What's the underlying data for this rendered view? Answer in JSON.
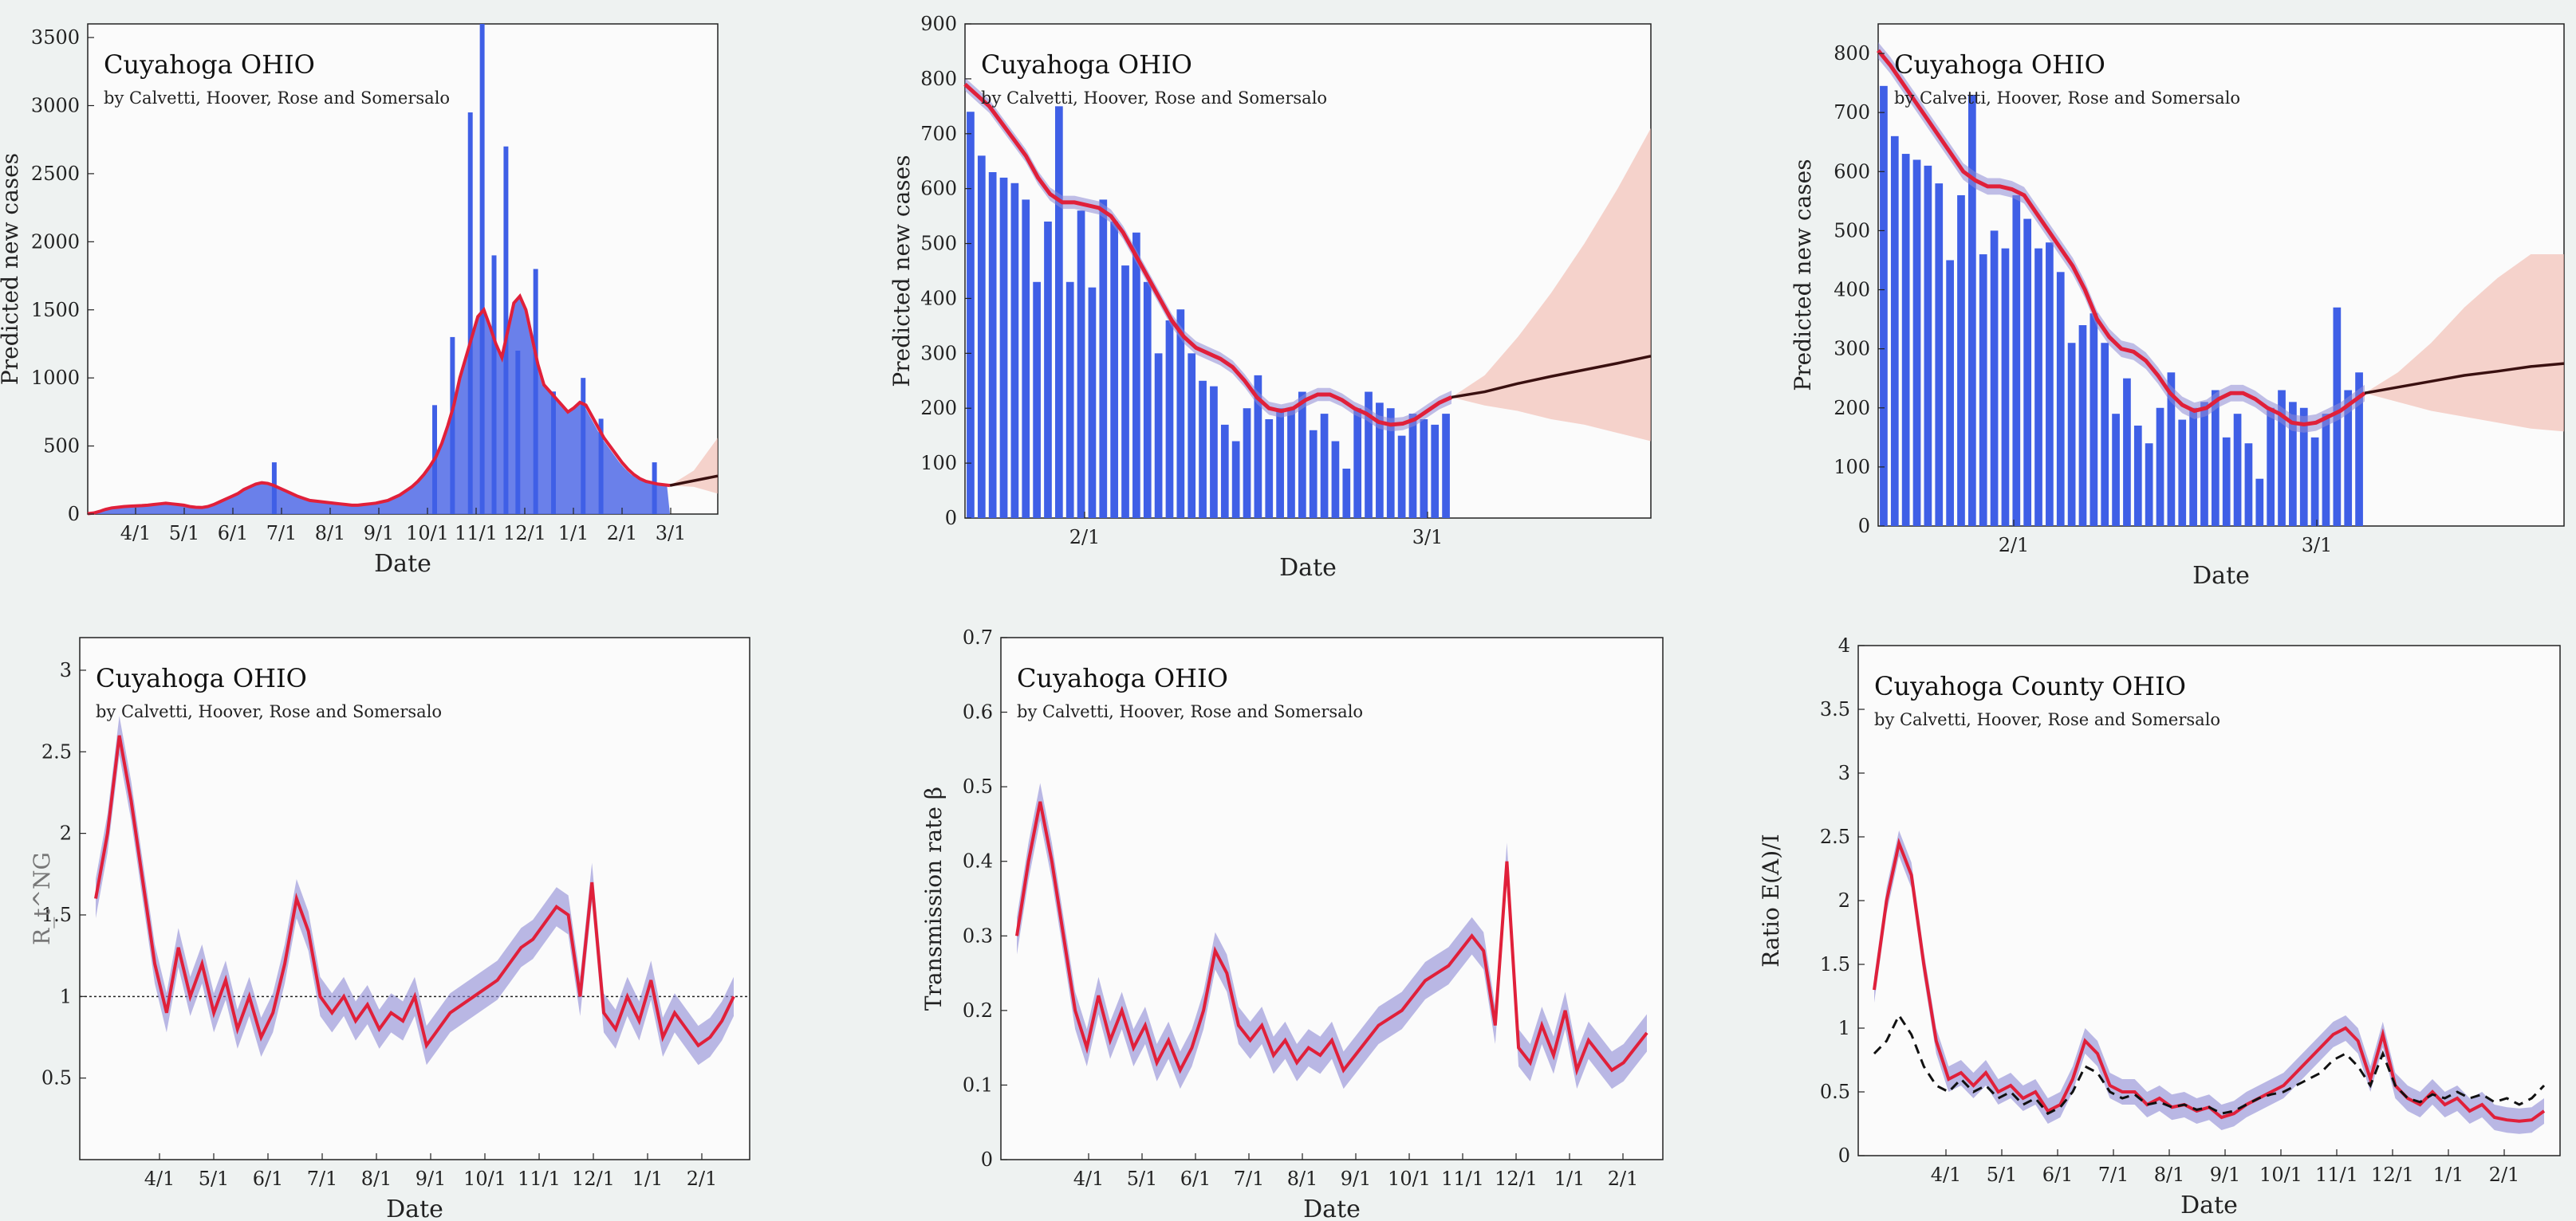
{
  "colors": {
    "bar": "#3f5fe6",
    "area": "#5a72e8",
    "red_curve": "#e0203a",
    "band": "#8e8ad6",
    "forecast": "#3a1010",
    "forecast_band": "#f2b7ac",
    "black_dash": "#111111",
    "panel_bg": "#fbfbfb"
  },
  "chart_data": [
    {
      "type": "bar",
      "title": "Cuyahoga OHIO",
      "subtitle": "by Calvetti, Hoover, Rose and Somersalo",
      "xlabel": "Date",
      "ylabel": "Predicted new cases",
      "xticks": [
        "4/1",
        "5/1",
        "6/1",
        "7/1",
        "8/1",
        "9/1",
        "10/1",
        "11/1",
        "12/1",
        "1/1",
        "2/1",
        "3/1"
      ],
      "yticks": [
        "0",
        "500",
        "1000",
        "1500",
        "2000",
        "2500",
        "3000",
        "3500"
      ],
      "ylim": [
        0,
        3600
      ],
      "grid": false,
      "series": [
        {
          "values": [
            3,
            8,
            20,
            35,
            45,
            50,
            55,
            58,
            60,
            62,
            65,
            70,
            75,
            80,
            75,
            70,
            65,
            55,
            50,
            48,
            55,
            70,
            90,
            110,
            130,
            150,
            180,
            200,
            220,
            230,
            225,
            210,
            190,
            170,
            150,
            130,
            115,
            100,
            95,
            90,
            85,
            80,
            75,
            70,
            65,
            65,
            70,
            75,
            80,
            90,
            100,
            120,
            140,
            170,
            200,
            240,
            290,
            350,
            420,
            520,
            650,
            800,
            1000,
            1150,
            1300,
            1450,
            1500,
            1380,
            1250,
            1150,
            1350,
            1550,
            1600,
            1500,
            1300,
            1100,
            950,
            900,
            850,
            800,
            750,
            780,
            820,
            800,
            720,
            640,
            560,
            500,
            440,
            380,
            330,
            290,
            260,
            240,
            230,
            220,
            215,
            210
          ]
        },
        {
          "values": [
            3,
            8,
            20,
            35,
            45,
            50,
            55,
            58,
            60,
            62,
            65,
            70,
            75,
            80,
            75,
            70,
            65,
            55,
            50,
            48,
            55,
            70,
            90,
            110,
            130,
            150,
            180,
            200,
            220,
            230,
            225,
            210,
            190,
            170,
            150,
            130,
            115,
            100,
            95,
            90,
            85,
            80,
            75,
            70,
            65,
            65,
            70,
            75,
            80,
            90,
            100,
            120,
            140,
            170,
            200,
            240,
            290,
            350,
            420,
            520,
            650,
            800,
            1000,
            1150,
            1300,
            1450,
            1500,
            1380,
            1250,
            1150,
            1350,
            1550,
            1600,
            1500,
            1300,
            1100,
            950,
            900,
            850,
            800,
            750,
            780,
            820,
            800,
            720,
            640,
            560,
            500,
            440,
            380,
            330,
            290,
            260,
            240,
            230,
            220,
            215,
            210
          ]
        }
      ],
      "spikes": [
        {
          "i": 31,
          "v": 380
        },
        {
          "i": 58,
          "v": 800
        },
        {
          "i": 61,
          "v": 1300
        },
        {
          "i": 64,
          "v": 2950
        },
        {
          "i": 66,
          "v": 3600
        },
        {
          "i": 68,
          "v": 1900
        },
        {
          "i": 70,
          "v": 2700
        },
        {
          "i": 72,
          "v": 1200
        },
        {
          "i": 75,
          "v": 1800
        },
        {
          "i": 78,
          "v": 900
        },
        {
          "i": 83,
          "v": 1000
        },
        {
          "i": 86,
          "v": 700
        },
        {
          "i": 95,
          "v": 380
        }
      ],
      "forecast": {
        "values": [
          210,
          245,
          280
        ],
        "upper": [
          210,
          320,
          560
        ],
        "lower": [
          210,
          200,
          150
        ]
      }
    },
    {
      "type": "bar",
      "title": "Cuyahoga OHIO",
      "subtitle": "by Calvetti, Hoover, Rose and Somersalo",
      "xlabel": "Date",
      "ylabel": "Predicted new cases",
      "xticks": [
        "2/1",
        "3/1"
      ],
      "yticks": [
        "0",
        "100",
        "200",
        "300",
        "400",
        "500",
        "600",
        "700",
        "800",
        "900"
      ],
      "ylim": [
        0,
        900
      ],
      "grid": false,
      "series": [
        {
          "values": [
            740,
            660,
            630,
            620,
            610,
            580,
            430,
            540,
            750,
            430,
            560,
            420,
            580,
            540,
            460,
            520,
            430,
            300,
            360,
            380,
            300,
            250,
            240,
            170,
            140,
            200,
            260,
            180,
            200,
            200,
            230,
            160,
            190,
            140,
            90,
            200,
            230,
            210,
            200,
            150,
            190,
            180,
            170,
            190
          ]
        },
        {
          "values": [
            790,
            770,
            750,
            720,
            690,
            660,
            620,
            590,
            575,
            575,
            570,
            565,
            550,
            520,
            480,
            440,
            400,
            360,
            330,
            310,
            300,
            290,
            275,
            250,
            220,
            200,
            195,
            200,
            215,
            225,
            225,
            215,
            200,
            190,
            175,
            170,
            172,
            180,
            195,
            210,
            220
          ]
        }
      ],
      "band_width": 12,
      "forecast": {
        "values": [
          220,
          230,
          245,
          258,
          270,
          282,
          295
        ],
        "upper": [
          220,
          260,
          330,
          410,
          500,
          600,
          710
        ],
        "lower": [
          220,
          205,
          195,
          180,
          170,
          155,
          140
        ]
      }
    },
    {
      "type": "bar",
      "title": "Cuyahoga OHIO",
      "subtitle": "by Calvetti, Hoover, Rose and Somersalo",
      "xlabel": "Date",
      "ylabel": "Predicted new cases",
      "xticks": [
        "2/1",
        "3/1"
      ],
      "yticks": [
        "0",
        "100",
        "200",
        "300",
        "400",
        "500",
        "600",
        "700",
        "800"
      ],
      "ylim": [
        0,
        850
      ],
      "grid": false,
      "series": [
        {
          "values": [
            745,
            660,
            630,
            620,
            610,
            580,
            450,
            560,
            730,
            460,
            500,
            470,
            560,
            520,
            470,
            480,
            430,
            310,
            340,
            360,
            310,
            190,
            250,
            170,
            140,
            200,
            260,
            180,
            200,
            210,
            230,
            150,
            190,
            140,
            80,
            200,
            230,
            210,
            200,
            150,
            190,
            370,
            230,
            260
          ]
        },
        {
          "values": [
            805,
            780,
            750,
            720,
            690,
            660,
            630,
            600,
            585,
            575,
            575,
            570,
            560,
            530,
            500,
            470,
            440,
            400,
            350,
            320,
            300,
            295,
            280,
            255,
            225,
            205,
            195,
            200,
            215,
            225,
            225,
            215,
            200,
            190,
            175,
            172,
            175,
            185,
            195,
            210,
            225
          ]
        }
      ],
      "band_width": 14,
      "forecast": {
        "values": [
          225,
          235,
          245,
          255,
          262,
          270,
          275
        ],
        "upper": [
          225,
          260,
          310,
          370,
          420,
          460,
          460
        ],
        "lower": [
          225,
          210,
          195,
          185,
          175,
          165,
          160
        ]
      }
    },
    {
      "type": "line",
      "title": "Cuyahoga OHIO",
      "subtitle": "by Calvetti, Hoover, Rose and Somersalo",
      "xlabel": "Date",
      "ylabel": "R_t^NG",
      "xticks": [
        "4/1",
        "5/1",
        "6/1",
        "7/1",
        "8/1",
        "9/1",
        "10/1",
        "11/1",
        "12/1",
        "1/1",
        "2/1"
      ],
      "yticks": [
        "0.5",
        "1",
        "1.5",
        "2",
        "2.5",
        "3"
      ],
      "ylim": [
        0,
        3.2
      ],
      "grid": false,
      "reference_line": 1,
      "series": [
        {
          "values": [
            1.6,
            2.0,
            2.6,
            2.2,
            1.7,
            1.2,
            0.9,
            1.3,
            1.0,
            1.2,
            0.9,
            1.1,
            0.8,
            1.0,
            0.75,
            0.9,
            1.2,
            1.6,
            1.4,
            1.0,
            0.9,
            1.0,
            0.85,
            0.95,
            0.8,
            0.9,
            0.85,
            1.0,
            0.7,
            0.8,
            0.9,
            0.95,
            1.0,
            1.05,
            1.1,
            1.2,
            1.3,
            1.35,
            1.45,
            1.55,
            1.5,
            1.0,
            1.7,
            0.9,
            0.8,
            1.0,
            0.85,
            1.1,
            0.75,
            0.9,
            0.8,
            0.7,
            0.75,
            0.85,
            1.0
          ]
        }
      ],
      "band_width": 0.12
    },
    {
      "type": "line",
      "title": "Cuyahoga OHIO",
      "subtitle": "by Calvetti, Hoover, Rose and Somersalo",
      "xlabel": "Date",
      "ylabel": "Transmission rate β",
      "xticks": [
        "4/1",
        "5/1",
        "6/1",
        "7/1",
        "8/1",
        "9/1",
        "10/1",
        "11/1",
        "12/1",
        "1/1",
        "2/1"
      ],
      "yticks": [
        "0",
        "0.1",
        "0.2",
        "0.3",
        "0.4",
        "0.5",
        "0.6",
        "0.7"
      ],
      "ylim": [
        0,
        0.7
      ],
      "grid": false,
      "series": [
        {
          "values": [
            0.3,
            0.4,
            0.48,
            0.4,
            0.3,
            0.2,
            0.15,
            0.22,
            0.16,
            0.2,
            0.15,
            0.18,
            0.13,
            0.16,
            0.12,
            0.15,
            0.2,
            0.28,
            0.25,
            0.18,
            0.16,
            0.18,
            0.14,
            0.16,
            0.13,
            0.15,
            0.14,
            0.16,
            0.12,
            0.14,
            0.16,
            0.18,
            0.19,
            0.2,
            0.22,
            0.24,
            0.25,
            0.26,
            0.28,
            0.3,
            0.28,
            0.18,
            0.4,
            0.15,
            0.13,
            0.18,
            0.14,
            0.2,
            0.12,
            0.16,
            0.14,
            0.12,
            0.13,
            0.15,
            0.17
          ]
        }
      ],
      "band_width": 0.025
    },
    {
      "type": "line",
      "title": "Cuyahoga County OHIO",
      "subtitle": "by Calvetti, Hoover, Rose and Somersalo",
      "xlabel": "Date",
      "ylabel": "Ratio E(A)/I",
      "xticks": [
        "4/1",
        "5/1",
        "6/1",
        "7/1",
        "8/1",
        "9/1",
        "10/1",
        "11/1",
        "12/1",
        "1/1",
        "2/1"
      ],
      "yticks": [
        "0",
        "0.5",
        "1",
        "1.5",
        "2",
        "2.5",
        "3",
        "3.5",
        "4"
      ],
      "ylim": [
        0,
        4
      ],
      "grid": false,
      "series": [
        {
          "values": [
            1.3,
            2.0,
            2.45,
            2.2,
            1.5,
            0.9,
            0.6,
            0.65,
            0.55,
            0.65,
            0.5,
            0.55,
            0.45,
            0.5,
            0.35,
            0.4,
            0.6,
            0.9,
            0.8,
            0.55,
            0.5,
            0.5,
            0.4,
            0.45,
            0.38,
            0.4,
            0.35,
            0.38,
            0.3,
            0.33,
            0.4,
            0.45,
            0.5,
            0.55,
            0.65,
            0.75,
            0.85,
            0.95,
            1.0,
            0.9,
            0.6,
            0.95,
            0.55,
            0.45,
            0.4,
            0.5,
            0.4,
            0.45,
            0.35,
            0.4,
            0.3,
            0.28,
            0.27,
            0.28,
            0.35
          ]
        },
        {
          "values": [
            0.8,
            0.9,
            1.1,
            0.95,
            0.7,
            0.55,
            0.5,
            0.6,
            0.5,
            0.55,
            0.45,
            0.5,
            0.4,
            0.45,
            0.33,
            0.38,
            0.5,
            0.7,
            0.65,
            0.5,
            0.45,
            0.48,
            0.4,
            0.42,
            0.38,
            0.4,
            0.36,
            0.38,
            0.33,
            0.35,
            0.4,
            0.45,
            0.48,
            0.5,
            0.55,
            0.6,
            0.65,
            0.75,
            0.8,
            0.7,
            0.55,
            0.8,
            0.55,
            0.45,
            0.42,
            0.48,
            0.45,
            0.5,
            0.45,
            0.48,
            0.42,
            0.45,
            0.4,
            0.45,
            0.55
          ]
        }
      ],
      "band_width": 0.1
    }
  ]
}
